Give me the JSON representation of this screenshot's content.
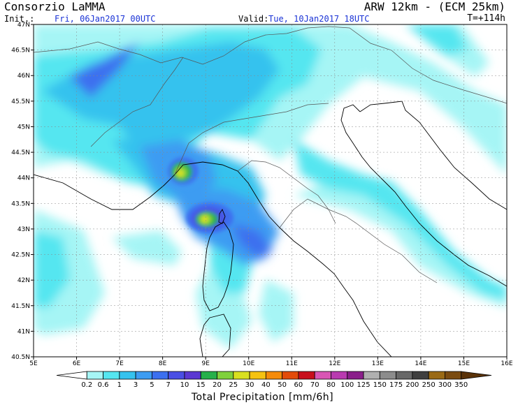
{
  "header": {
    "title": "Consorzio LaMMA",
    "model": "ARW 12km - (ECM 25km)",
    "init_label": "Init.:",
    "init_value": "Fri, 06Jan2017 00UTC",
    "valid_label": "Valid:",
    "valid_value": "Tue, 10Jan2017 18UTC",
    "forecast_step": "T=+114h"
  },
  "map": {
    "lat_labels": [
      "47N",
      "46.5N",
      "46N",
      "45.5N",
      "45N",
      "44.5N",
      "44N",
      "43.5N",
      "43N",
      "42.5N",
      "42N",
      "41.5N",
      "41N",
      "40.5N"
    ],
    "lon_labels": [
      "5E",
      "6E",
      "7E",
      "8E",
      "9E",
      "10E",
      "11E",
      "12E",
      "13E",
      "14E",
      "15E",
      "16E"
    ]
  },
  "colorbar": {
    "title": "Total Precipitation [mm/6h]",
    "levels": [
      "0.2",
      "0.6",
      "1",
      "3",
      "5",
      "7",
      "10",
      "15",
      "20",
      "25",
      "30",
      "40",
      "50",
      "60",
      "70",
      "80",
      "100",
      "125",
      "150",
      "175",
      "200",
      "250",
      "300",
      "350"
    ],
    "colors": [
      "#ffffff",
      "#a6f5f5",
      "#55e6f0",
      "#35c2ee",
      "#3d9cf2",
      "#3c70ef",
      "#4a4fe4",
      "#5b38d2",
      "#26b04a",
      "#7fd13c",
      "#d9e020",
      "#f5c211",
      "#f58b0a",
      "#e34b0a",
      "#c80f1c",
      "#d955b4",
      "#b93ab0",
      "#8a1f8a",
      "#b0b0b0",
      "#8c8c8c",
      "#686868",
      "#3f3f3f",
      "#9a6a15",
      "#7a4b10",
      "#5a3208"
    ]
  }
}
